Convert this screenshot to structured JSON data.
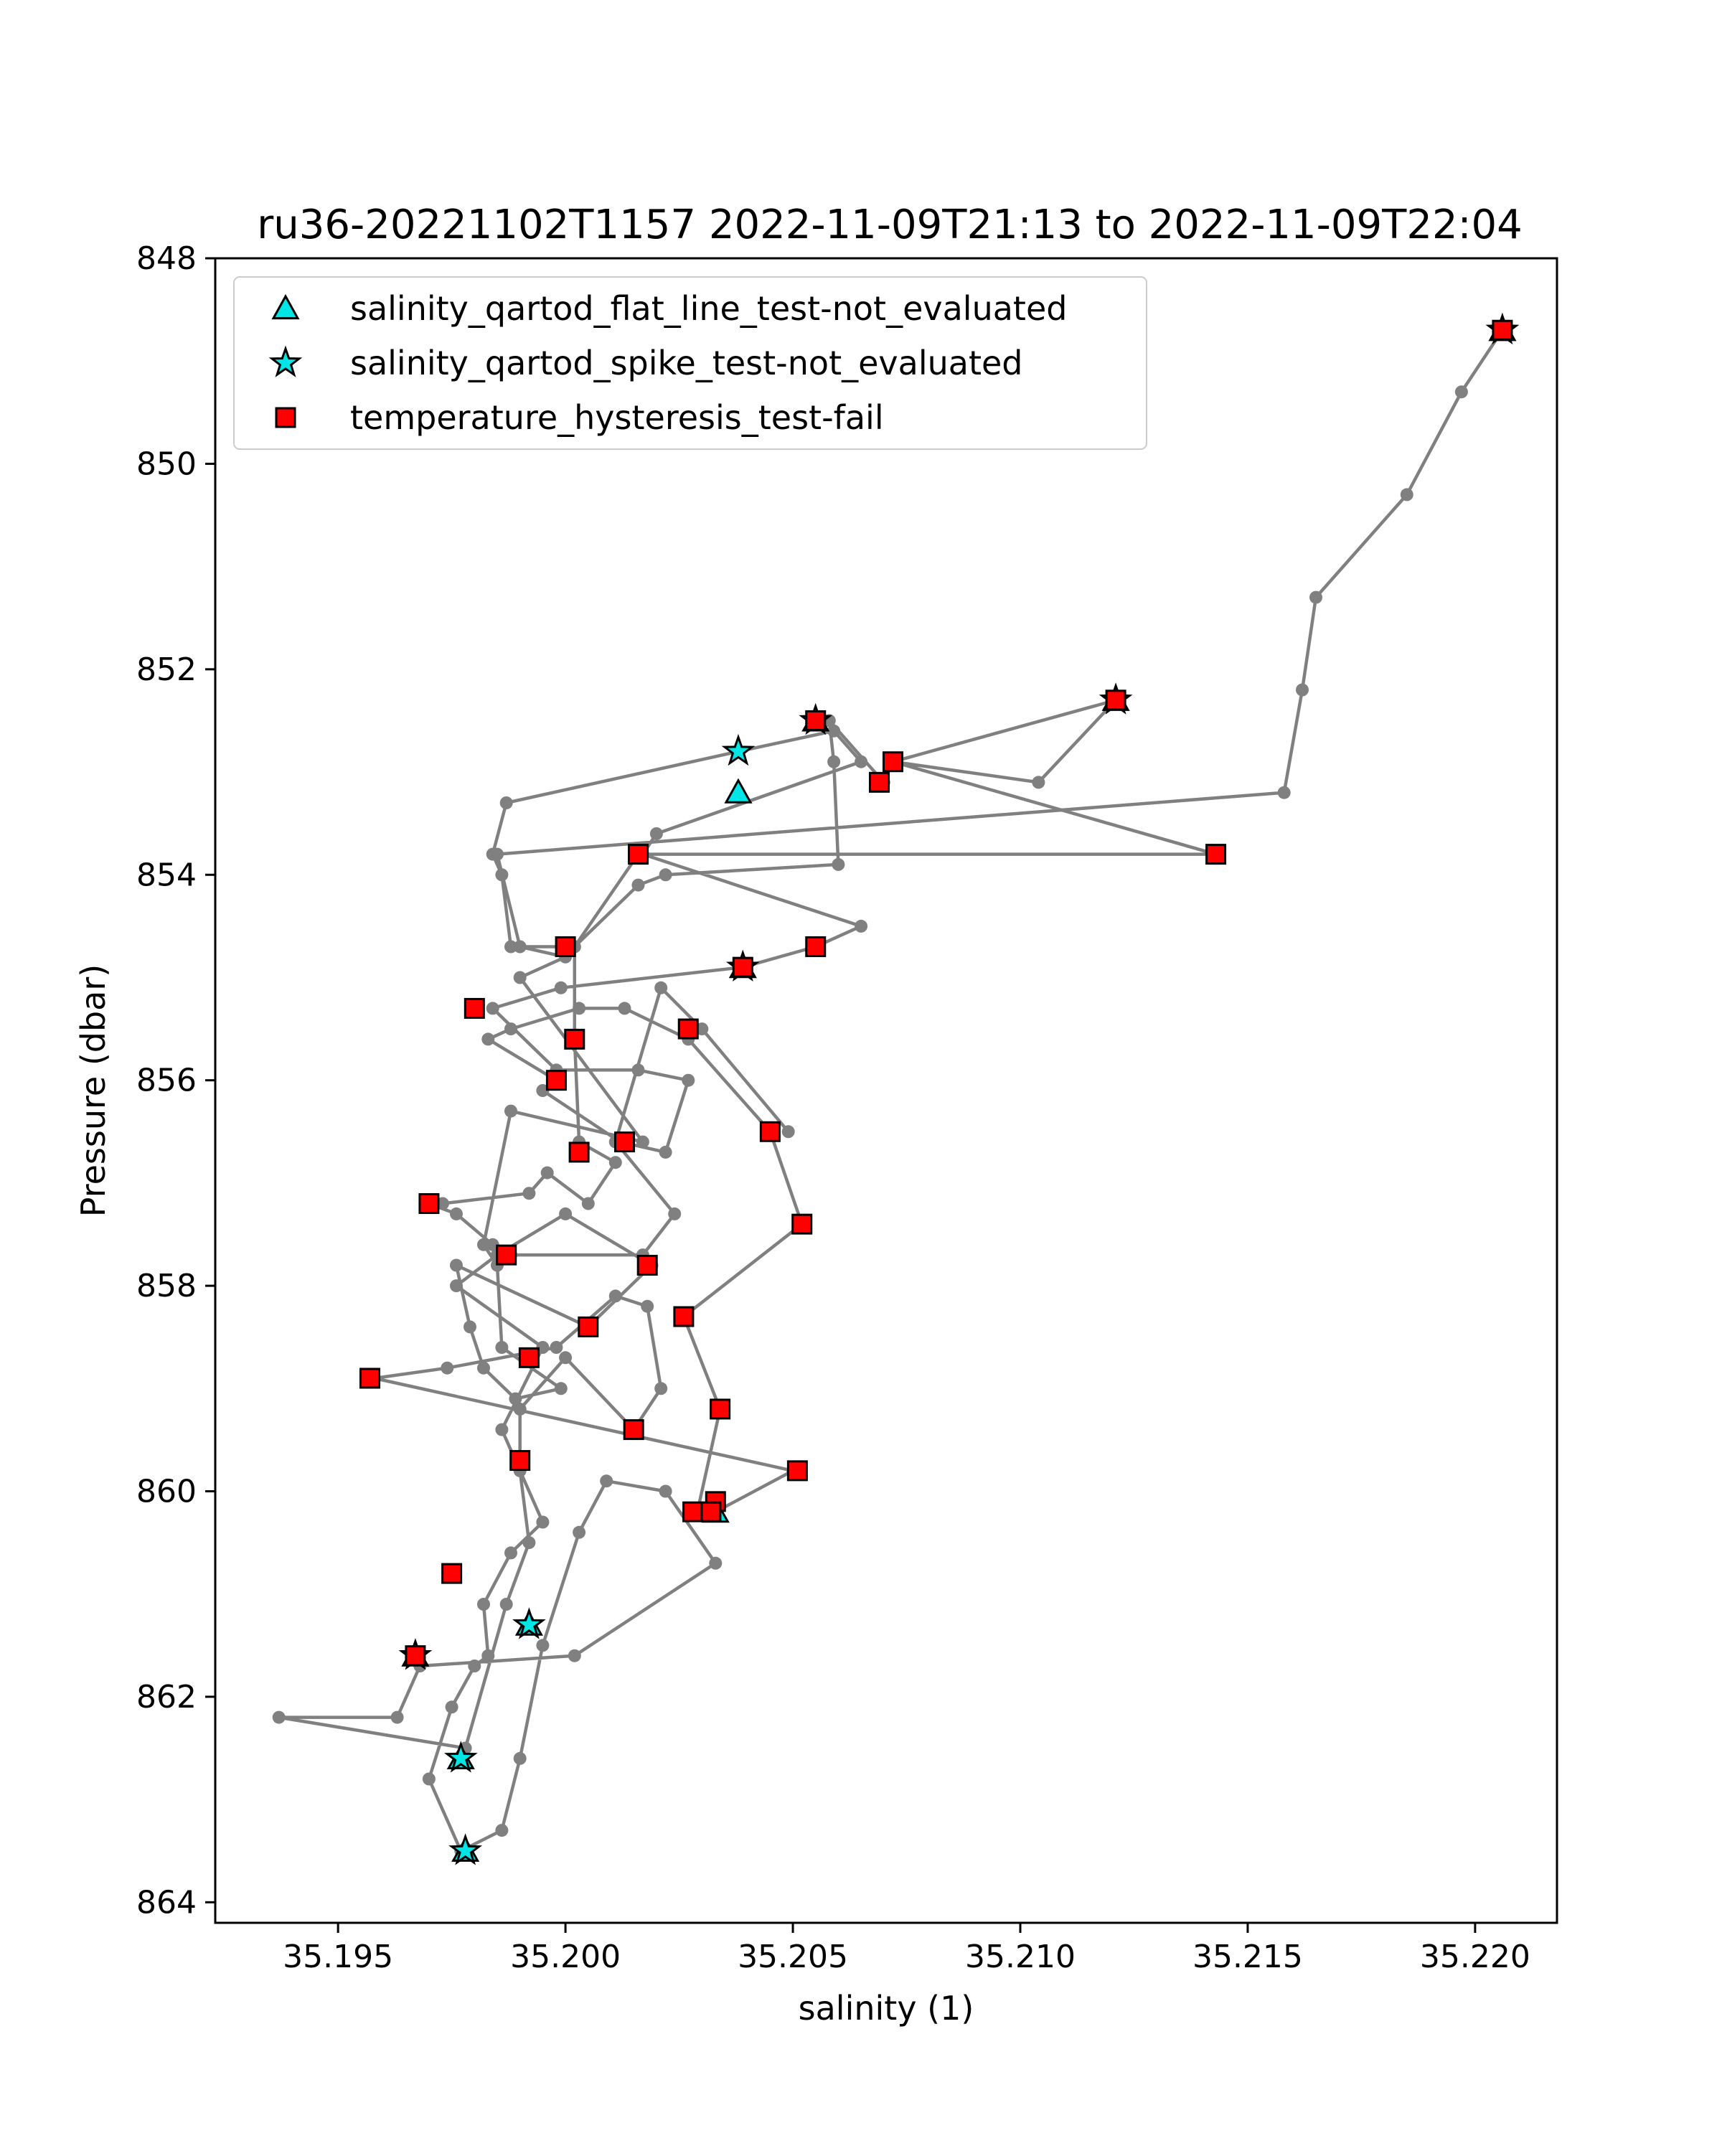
{
  "chart_data": {
    "type": "scatter",
    "title": "ru36-20221102T1157 2022-11-09T21:13 to 2022-11-09T22:04",
    "xlabel": "salinity (1)",
    "ylabel": "Pressure (dbar)",
    "xlim": [
      35.1923,
      35.2218
    ],
    "ylim": [
      864.2,
      848.0
    ],
    "y_inverted": true,
    "grid": false,
    "legend_position": "top-left",
    "xticks": [
      35.195,
      35.2,
      35.205,
      35.21,
      35.215,
      35.22
    ],
    "xtick_labels": [
      "35.195",
      "35.200",
      "35.205",
      "35.210",
      "35.215",
      "35.220"
    ],
    "yticks": [
      848,
      850,
      852,
      854,
      856,
      858,
      860,
      862,
      864
    ],
    "ytick_labels": [
      "848",
      "850",
      "852",
      "854",
      "856",
      "858",
      "860",
      "862",
      "864"
    ],
    "profile_color": "#808080",
    "profile": [
      [
        35.2206,
        848.7
      ],
      [
        35.2197,
        849.3
      ],
      [
        35.2185,
        850.3
      ],
      [
        35.2165,
        851.3
      ],
      [
        35.2162,
        852.2
      ],
      [
        35.2158,
        853.2
      ],
      [
        35.1985,
        853.8
      ],
      [
        35.199,
        854.7
      ],
      [
        35.2,
        854.8
      ],
      [
        35.199,
        855.0
      ],
      [
        35.2017,
        856.6
      ],
      [
        35.1988,
        856.3
      ],
      [
        35.1982,
        857.6
      ],
      [
        35.1985,
        857.8
      ],
      [
        35.1986,
        858.6
      ],
      [
        35.1999,
        859.0
      ],
      [
        35.1989,
        859.1
      ],
      [
        35.1982,
        858.8
      ],
      [
        35.1979,
        858.4
      ],
      [
        35.1976,
        857.8
      ],
      [
        35.2005,
        858.4
      ],
      [
        35.2019,
        857.8
      ],
      [
        35.2,
        857.3
      ],
      [
        35.1985,
        857.7
      ],
      [
        35.1976,
        858.0
      ],
      [
        35.1995,
        858.6
      ],
      [
        35.1986,
        859.4
      ],
      [
        35.1995,
        860.3
      ],
      [
        35.1988,
        860.6
      ],
      [
        35.1982,
        861.1
      ],
      [
        35.1983,
        861.6
      ],
      [
        35.198,
        861.7
      ],
      [
        35.1975,
        862.1
      ],
      [
        35.197,
        862.8
      ],
      [
        35.1977,
        863.5
      ],
      [
        35.1986,
        863.3
      ],
      [
        35.199,
        862.6
      ],
      [
        35.1995,
        861.5
      ],
      [
        35.2003,
        860.4
      ],
      [
        35.2009,
        859.9
      ],
      [
        35.2022,
        860.0
      ],
      [
        35.2033,
        860.7
      ],
      [
        35.2002,
        861.6
      ],
      [
        35.1968,
        861.7
      ],
      [
        35.1963,
        862.2
      ],
      [
        35.1937,
        862.2
      ],
      [
        35.1978,
        862.5
      ],
      [
        35.1987,
        861.1
      ],
      [
        35.1992,
        860.5
      ],
      [
        35.199,
        859.8
      ],
      [
        35.199,
        859.2
      ],
      [
        35.2,
        858.7
      ],
      [
        35.2015,
        859.4
      ],
      [
        35.2021,
        859.0
      ],
      [
        35.2018,
        858.2
      ],
      [
        35.2011,
        858.1
      ],
      [
        35.1998,
        858.6
      ],
      [
        35.1974,
        858.8
      ],
      [
        35.1958,
        858.9
      ],
      [
        35.205,
        859.8
      ],
      [
        35.2033,
        860.2
      ],
      [
        35.2029,
        860.2
      ],
      [
        35.2034,
        859.2
      ],
      [
        35.2026,
        858.3
      ],
      [
        35.2052,
        857.4
      ],
      [
        35.2045,
        856.5
      ],
      [
        35.2027,
        855.6
      ],
      [
        35.2013,
        855.3
      ],
      [
        35.2003,
        855.3
      ],
      [
        35.1988,
        855.5
      ],
      [
        35.1983,
        855.6
      ],
      [
        35.1998,
        856.0
      ],
      [
        35.1995,
        856.1
      ],
      [
        35.2012,
        856.6
      ],
      [
        35.2022,
        856.7
      ],
      [
        35.2027,
        856.0
      ],
      [
        35.2016,
        855.9
      ],
      [
        35.1998,
        855.9
      ],
      [
        35.1984,
        855.3
      ],
      [
        35.1999,
        855.1
      ],
      [
        35.2039,
        854.9
      ],
      [
        35.2055,
        854.7
      ],
      [
        35.2065,
        854.5
      ],
      [
        35.2017,
        853.8
      ],
      [
        35.202,
        853.6
      ],
      [
        35.2065,
        852.9
      ],
      [
        35.2059,
        852.6
      ],
      [
        35.2038,
        852.8
      ],
      [
        35.1987,
        853.3
      ],
      [
        35.1984,
        853.8
      ],
      [
        35.1986,
        854.0
      ],
      [
        35.1988,
        854.7
      ],
      [
        35.2002,
        854.7
      ],
      [
        35.2016,
        854.1
      ],
      [
        35.2022,
        854.0
      ],
      [
        35.206,
        853.9
      ],
      [
        35.2059,
        852.9
      ],
      [
        35.2058,
        852.5
      ],
      [
        35.207,
        853.1
      ],
      [
        35.2072,
        852.9
      ],
      [
        35.2104,
        853.1
      ],
      [
        35.2121,
        852.3
      ],
      [
        35.2072,
        852.9
      ],
      [
        35.2143,
        853.8
      ],
      [
        35.2016,
        853.8
      ],
      [
        35.2002,
        854.7
      ],
      [
        35.2002,
        855.6
      ],
      [
        35.2003,
        856.6
      ],
      [
        35.2011,
        856.8
      ],
      [
        35.2005,
        857.2
      ],
      [
        35.1996,
        856.9
      ],
      [
        35.1992,
        857.1
      ],
      [
        35.1973,
        857.2
      ],
      [
        35.197,
        857.2
      ],
      [
        35.1976,
        857.3
      ],
      [
        35.1984,
        857.6
      ],
      [
        35.1988,
        857.7
      ],
      [
        35.2017,
        857.7
      ],
      [
        35.2024,
        857.3
      ],
      [
        35.2011,
        856.6
      ],
      [
        35.2021,
        855.1
      ],
      [
        35.203,
        855.5
      ],
      [
        35.2049,
        856.5
      ]
    ],
    "series": [
      {
        "name": "salinity_qartod_flat_line_test-not_evaluated",
        "marker": "triangle",
        "color": "#00e5e5",
        "x": [
          35.2038,
          35.2055,
          35.2121,
          35.2206,
          35.2039,
          35.1967,
          35.2033,
          35.1992,
          35.1977,
          35.1978
        ],
        "y": [
          853.2,
          852.5,
          852.3,
          848.7,
          854.9,
          861.6,
          860.2,
          861.3,
          862.6,
          863.5
        ]
      },
      {
        "name": "salinity_qartod_spike_test-not_evaluated",
        "marker": "star",
        "color": "#00e5e5",
        "x": [
          35.2038,
          35.2055,
          35.2121,
          35.2206,
          35.2039,
          35.1967,
          35.1992,
          35.1977,
          35.1978
        ],
        "y": [
          852.8,
          852.5,
          852.3,
          848.7,
          854.9,
          861.6,
          861.3,
          862.6,
          863.5
        ]
      },
      {
        "name": "temperature_hysteresis_test-fail",
        "marker": "square",
        "color": "#ff0000",
        "x": [
          35.2206,
          35.2121,
          35.2055,
          35.2072,
          35.2069,
          35.2143,
          35.2016,
          35.2,
          35.2039,
          35.2055,
          35.198,
          35.2002,
          35.2027,
          35.1998,
          35.2045,
          35.2003,
          35.2013,
          35.197,
          35.2052,
          35.1987,
          35.2018,
          35.2005,
          35.2026,
          35.1992,
          35.1957,
          35.2034,
          35.2015,
          35.199,
          35.2051,
          35.2033,
          35.2028,
          35.2032,
          35.1975,
          35.1967
        ],
        "y": [
          848.7,
          852.3,
          852.5,
          852.9,
          853.1,
          853.8,
          853.8,
          854.7,
          854.9,
          854.7,
          855.3,
          855.6,
          855.5,
          856.0,
          856.5,
          856.7,
          856.6,
          857.2,
          857.4,
          857.7,
          857.8,
          858.4,
          858.3,
          858.7,
          858.9,
          859.2,
          859.4,
          859.7,
          859.8,
          860.1,
          860.2,
          860.2,
          860.8,
          861.6
        ]
      }
    ]
  }
}
